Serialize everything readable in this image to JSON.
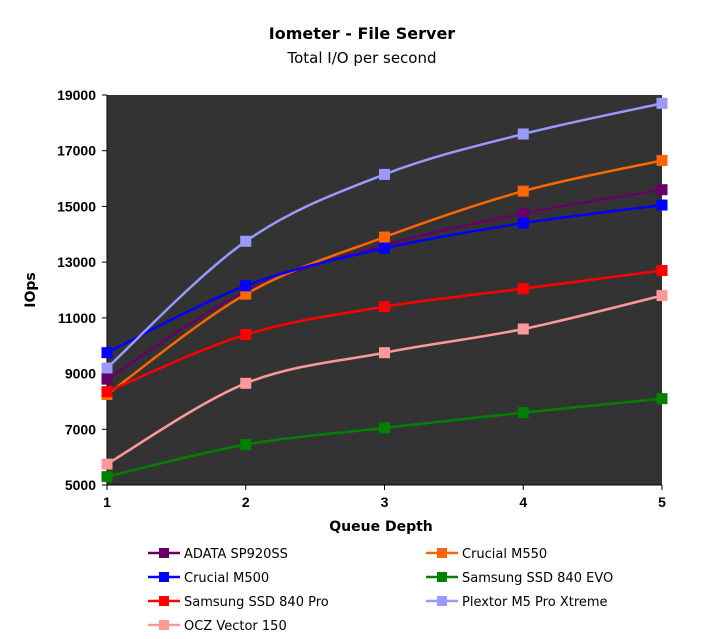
{
  "chart_data": {
    "type": "line",
    "title": "Iometer - File Server",
    "subtitle": "Total I/O per second",
    "xlabel": "Queue Depth",
    "ylabel": "IOps",
    "x": [
      1,
      2,
      3,
      4,
      5
    ],
    "xticks": [
      "1",
      "2",
      "3",
      "4",
      "5"
    ],
    "ylim": [
      5000,
      19000
    ],
    "yticks": [
      "5000",
      "7000",
      "9000",
      "11000",
      "13000",
      "15000",
      "17000",
      "19000"
    ],
    "grid": false,
    "legend_position": "bottom",
    "series": [
      {
        "name": "ADATA SP920SS",
        "color": "#660066",
        "values": [
          8800,
          11950,
          13600,
          14750,
          15600
        ]
      },
      {
        "name": "Crucial M550",
        "color": "#ff6600",
        "values": [
          8250,
          11850,
          13900,
          15550,
          16650
        ]
      },
      {
        "name": "Crucial M500",
        "color": "#0000ff",
        "values": [
          9750,
          12150,
          13500,
          14400,
          15050
        ]
      },
      {
        "name": "Samsung SSD 840 EVO",
        "color": "#008000",
        "values": [
          5300,
          6450,
          7050,
          7600,
          8100
        ]
      },
      {
        "name": "Samsung SSD 840 Pro",
        "color": "#ff0000",
        "values": [
          8350,
          10400,
          11400,
          12050,
          12700
        ]
      },
      {
        "name": "Plextor M5 Pro Xtreme",
        "color": "#9999ff",
        "values": [
          9200,
          13750,
          16150,
          17600,
          18700
        ]
      },
      {
        "name": "OCZ Vector 150",
        "color": "#ff9999",
        "values": [
          5750,
          8650,
          9750,
          10600,
          11800
        ]
      }
    ]
  }
}
